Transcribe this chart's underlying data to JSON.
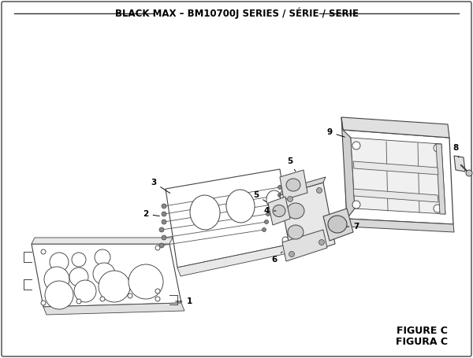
{
  "title": "BLACK MAX – BM10700J SERIES / SÉRIE / SERIE",
  "figure_label": "FIGURE C",
  "figura_label": "FIGURA C",
  "bg": "#ffffff",
  "lc": "#000000",
  "ec": "#555555",
  "title_fontsize": 8.5,
  "label_fontsize": 7.5,
  "fig_label_fontsize": 9
}
